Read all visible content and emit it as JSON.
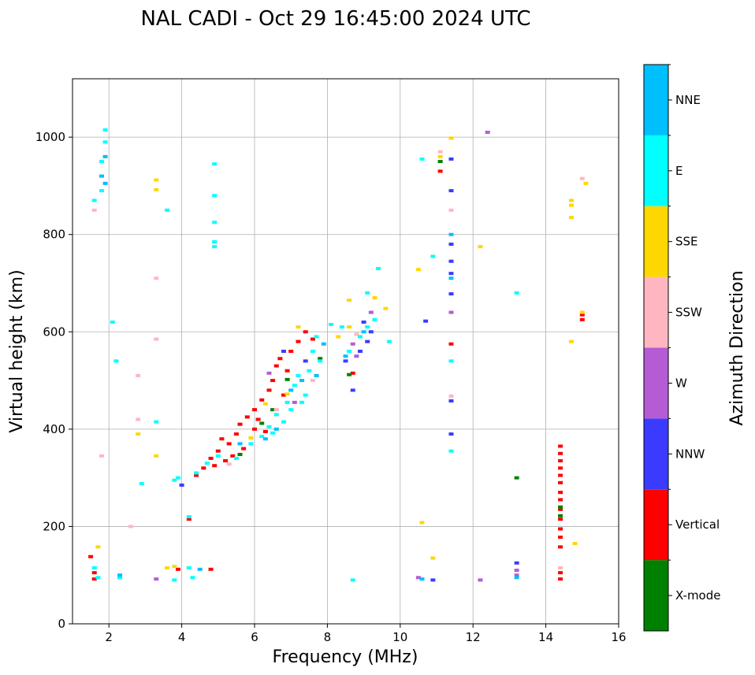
{
  "chart_data": {
    "type": "scatter",
    "title": "NAL CADI - Oct 29 16:45:00 2024 UTC",
    "xlabel": "Frequency (MHz)",
    "ylabel": "Virtual height (km)",
    "xlim": [
      1,
      16
    ],
    "ylim": [
      0,
      1120
    ],
    "grid": true,
    "x_ticks": [
      2,
      4,
      6,
      8,
      10,
      12,
      14,
      16
    ],
    "x_tick_labels": [
      "2",
      "4",
      "6",
      "8",
      "10",
      "12",
      "14",
      "16"
    ],
    "y_ticks": [
      0,
      200,
      400,
      600,
      800,
      1000
    ],
    "y_tick_labels": [
      "0",
      "200",
      "400",
      "600",
      "800",
      "1000"
    ],
    "colorbar": {
      "title": "Azimuth Direction",
      "categories": [
        {
          "label": "X-mode",
          "color": "#008000"
        },
        {
          "label": "Vertical",
          "color": "#ff0000"
        },
        {
          "label": "NNW",
          "color": "#3b3bff"
        },
        {
          "label": "W",
          "color": "#b55bd6"
        },
        {
          "label": "SSW",
          "color": "#ffb6c1"
        },
        {
          "label": "SSE",
          "color": "#ffd700"
        },
        {
          "label": "E",
          "color": "#00ffff"
        },
        {
          "label": "NNE",
          "color": "#00bfff"
        }
      ]
    },
    "series": [
      {
        "name": "Vertical",
        "points": [
          [
            4.2,
            215
          ],
          [
            4.4,
            305
          ],
          [
            4.6,
            320
          ],
          [
            4.8,
            340
          ],
          [
            5.0,
            355
          ],
          [
            5.1,
            380
          ],
          [
            5.3,
            370
          ],
          [
            5.5,
            390
          ],
          [
            5.6,
            410
          ],
          [
            5.8,
            425
          ],
          [
            6.0,
            440
          ],
          [
            6.2,
            460
          ],
          [
            6.4,
            480
          ],
          [
            6.5,
            500
          ],
          [
            6.6,
            530
          ],
          [
            6.7,
            545
          ],
          [
            6.9,
            520
          ],
          [
            7.0,
            560
          ],
          [
            7.2,
            580
          ],
          [
            7.4,
            600
          ],
          [
            5.2,
            335
          ],
          [
            5.7,
            360
          ],
          [
            6.1,
            420
          ],
          [
            6.3,
            395
          ],
          [
            6.8,
            470
          ],
          [
            4.9,
            325
          ],
          [
            5.4,
            345
          ],
          [
            6.0,
            400
          ],
          [
            7.6,
            585
          ],
          [
            8.7,
            515
          ],
          [
            11.1,
            930
          ],
          [
            11.4,
            575
          ],
          [
            14.4,
            365
          ],
          [
            14.4,
            350
          ],
          [
            14.4,
            335
          ],
          [
            14.4,
            320
          ],
          [
            14.4,
            305
          ],
          [
            14.4,
            290
          ],
          [
            14.4,
            270
          ],
          [
            14.4,
            255
          ],
          [
            14.4,
            235
          ],
          [
            14.4,
            215
          ],
          [
            14.4,
            195
          ],
          [
            14.4,
            178
          ],
          [
            14.4,
            158
          ],
          [
            14.4,
            105
          ],
          [
            14.4,
            92
          ],
          [
            15.0,
            635
          ],
          [
            15.0,
            625
          ],
          [
            4.8,
            112
          ],
          [
            1.5,
            138
          ],
          [
            1.6,
            105
          ],
          [
            1.6,
            92
          ],
          [
            3.9,
            112
          ]
        ]
      },
      {
        "name": "X-mode",
        "points": [
          [
            6.2,
            412
          ],
          [
            6.5,
            440
          ],
          [
            8.6,
            512
          ],
          [
            7.8,
            545
          ],
          [
            14.4,
            222
          ],
          [
            14.4,
            240
          ],
          [
            13.2,
            300
          ],
          [
            11.1,
            950
          ],
          [
            5.6,
            348
          ],
          [
            6.9,
            502
          ]
        ]
      },
      {
        "name": "NNW",
        "points": [
          [
            4.0,
            285
          ],
          [
            8.5,
            540
          ],
          [
            8.7,
            480
          ],
          [
            8.9,
            560
          ],
          [
            9.1,
            580
          ],
          [
            9.2,
            600
          ],
          [
            9.0,
            620
          ],
          [
            10.7,
            622
          ],
          [
            11.4,
            955
          ],
          [
            11.4,
            890
          ],
          [
            11.4,
            780
          ],
          [
            11.4,
            745
          ],
          [
            11.4,
            678
          ],
          [
            11.4,
            458
          ],
          [
            13.2,
            125
          ],
          [
            10.9,
            90
          ],
          [
            6.8,
            560
          ],
          [
            7.4,
            540
          ],
          [
            11.4,
            720
          ],
          [
            11.4,
            390
          ]
        ]
      },
      {
        "name": "W",
        "points": [
          [
            8.7,
            575
          ],
          [
            8.8,
            550
          ],
          [
            9.2,
            640
          ],
          [
            12.4,
            1010
          ],
          [
            11.4,
            640
          ],
          [
            13.2,
            110
          ],
          [
            13.2,
            100
          ],
          [
            12.2,
            90
          ],
          [
            10.5,
            95
          ],
          [
            3.3,
            92
          ],
          [
            7.1,
            455
          ],
          [
            6.4,
            515
          ]
        ]
      },
      {
        "name": "SSW",
        "points": [
          [
            1.6,
            850
          ],
          [
            3.3,
            710
          ],
          [
            3.3,
            585
          ],
          [
            2.8,
            510
          ],
          [
            2.8,
            420
          ],
          [
            1.8,
            345
          ],
          [
            11.4,
            850
          ],
          [
            11.4,
            468
          ],
          [
            8.8,
            595
          ],
          [
            14.4,
            115
          ],
          [
            15.0,
            915
          ],
          [
            6.6,
            440
          ],
          [
            7.6,
            500
          ],
          [
            11.1,
            970
          ],
          [
            2.6,
            200
          ],
          [
            5.3,
            328
          ]
        ]
      },
      {
        "name": "SSE",
        "points": [
          [
            8.3,
            590
          ],
          [
            8.6,
            610
          ],
          [
            8.6,
            665
          ],
          [
            9.3,
            670
          ],
          [
            9.6,
            648
          ],
          [
            10.5,
            728
          ],
          [
            10.6,
            208
          ],
          [
            10.9,
            135
          ],
          [
            12.2,
            775
          ],
          [
            14.7,
            870
          ],
          [
            14.7,
            860
          ],
          [
            14.7,
            835
          ],
          [
            14.7,
            580
          ],
          [
            14.8,
            165
          ],
          [
            15.1,
            905
          ],
          [
            15.0,
            640
          ],
          [
            3.3,
            912
          ],
          [
            3.3,
            892
          ],
          [
            2.8,
            390
          ],
          [
            3.3,
            345
          ],
          [
            1.7,
            158
          ],
          [
            3.6,
            115
          ],
          [
            3.8,
            118
          ],
          [
            7.2,
            610
          ],
          [
            6.3,
            452
          ],
          [
            6.9,
            472
          ],
          [
            5.9,
            382
          ],
          [
            11.1,
            960
          ],
          [
            11.4,
            998
          ]
        ]
      },
      {
        "name": "E",
        "points": [
          [
            4.4,
            310
          ],
          [
            4.7,
            330
          ],
          [
            5.0,
            345
          ],
          [
            5.9,
            370
          ],
          [
            6.2,
            385
          ],
          [
            6.4,
            405
          ],
          [
            6.6,
            430
          ],
          [
            6.9,
            455
          ],
          [
            7.1,
            490
          ],
          [
            7.2,
            510
          ],
          [
            7.4,
            470
          ],
          [
            7.5,
            520
          ],
          [
            7.6,
            560
          ],
          [
            7.7,
            590
          ],
          [
            7.8,
            540
          ],
          [
            8.1,
            615
          ],
          [
            8.4,
            610
          ],
          [
            8.6,
            560
          ],
          [
            8.9,
            590
          ],
          [
            9.1,
            610
          ],
          [
            9.3,
            625
          ],
          [
            9.4,
            730
          ],
          [
            9.1,
            680
          ],
          [
            9.7,
            580
          ],
          [
            10.6,
            955
          ],
          [
            10.9,
            755
          ],
          [
            11.4,
            540
          ],
          [
            11.4,
            355
          ],
          [
            13.2,
            680
          ],
          [
            4.9,
            945
          ],
          [
            4.9,
            880
          ],
          [
            4.9,
            825
          ],
          [
            4.9,
            775
          ],
          [
            4.9,
            785
          ],
          [
            3.6,
            850
          ],
          [
            3.3,
            415
          ],
          [
            2.2,
            540
          ],
          [
            2.1,
            620
          ],
          [
            1.9,
            1015
          ],
          [
            1.9,
            990
          ],
          [
            1.8,
            950
          ],
          [
            1.8,
            890
          ],
          [
            1.6,
            870
          ],
          [
            2.3,
            95
          ],
          [
            4.2,
            115
          ],
          [
            4.3,
            95
          ],
          [
            3.8,
            90
          ],
          [
            8.7,
            90
          ],
          [
            1.6,
            115
          ],
          [
            1.7,
            95
          ],
          [
            6.5,
            392
          ],
          [
            7.0,
            440
          ],
          [
            7.3,
            455
          ],
          [
            6.8,
            415
          ],
          [
            5.5,
            340
          ],
          [
            4.2,
            220
          ],
          [
            3.9,
            300
          ],
          [
            3.8,
            295
          ],
          [
            2.9,
            288
          ]
        ]
      },
      {
        "name": "NNE",
        "points": [
          [
            1.8,
            920
          ],
          [
            1.9,
            960
          ],
          [
            1.9,
            905
          ],
          [
            6.3,
            380
          ],
          [
            6.6,
            400
          ],
          [
            7.0,
            480
          ],
          [
            7.3,
            500
          ],
          [
            7.7,
            510
          ],
          [
            8.5,
            550
          ],
          [
            9.0,
            600
          ],
          [
            11.4,
            710
          ],
          [
            11.4,
            800
          ],
          [
            4.5,
            112
          ],
          [
            2.3,
            100
          ],
          [
            13.2,
            95
          ],
          [
            10.6,
            92
          ],
          [
            5.6,
            370
          ],
          [
            7.9,
            575
          ]
        ]
      }
    ]
  }
}
